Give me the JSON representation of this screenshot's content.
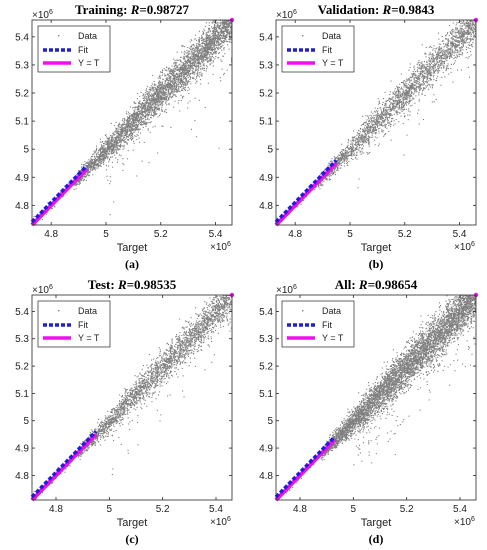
{
  "chart_data": [
    {
      "type": "scatter",
      "title_prefix": "Training: ",
      "title_r_label": "R",
      "title_value": "=0.98727",
      "caption": "(a)",
      "xlabel": "Target",
      "x_multiplier": "×10",
      "x_multiplier_exp": "6",
      "y_multiplier": "×10",
      "y_multiplier_exp": "6",
      "xlim": [
        4.73,
        5.46
      ],
      "ylim": [
        4.73,
        5.46
      ],
      "xticks": [
        "4.8",
        "5",
        "5.2",
        "5.4"
      ],
      "yticks": [
        "4.8",
        "4.9",
        "5",
        "5.1",
        "5.2",
        "5.3",
        "5.4"
      ],
      "legend": [
        "Data",
        "Fit",
        "Y = T"
      ],
      "legend_position": "top-left",
      "fit_range": [
        4.73,
        4.93
      ],
      "identity_range": [
        4.73,
        4.93
      ],
      "colors": {
        "data": "#7f7f7f",
        "fit": "#1f1fd6",
        "identity": "#ee11ee"
      }
    },
    {
      "type": "scatter",
      "title_prefix": "Validation: ",
      "title_r_label": "R",
      "title_value": "=0.9843",
      "caption": "(b)",
      "xlabel": "Target",
      "x_multiplier": "×10",
      "x_multiplier_exp": "6",
      "y_multiplier": "×10",
      "y_multiplier_exp": "6",
      "xlim": [
        4.73,
        5.46
      ],
      "ylim": [
        4.73,
        5.46
      ],
      "xticks": [
        "4.8",
        "5",
        "5.2",
        "5.4"
      ],
      "yticks": [
        "4.8",
        "4.9",
        "5",
        "5.1",
        "5.2",
        "5.3",
        "5.4"
      ],
      "legend": [
        "Data",
        "Fit",
        "Y = T"
      ],
      "legend_position": "top-left",
      "fit_range": [
        4.73,
        4.95
      ],
      "identity_range": [
        4.73,
        4.95
      ],
      "colors": {
        "data": "#7f7f7f",
        "fit": "#1f1fd6",
        "identity": "#ee11ee"
      }
    },
    {
      "type": "scatter",
      "title_prefix": "Test: ",
      "title_r_label": "R",
      "title_value": "=0.98535",
      "caption": "(c)",
      "xlabel": "Target",
      "x_multiplier": "×10",
      "x_multiplier_exp": "6",
      "y_multiplier": "×10",
      "y_multiplier_exp": "6",
      "xlim": [
        4.71,
        5.46
      ],
      "ylim": [
        4.71,
        5.46
      ],
      "xticks": [
        "4.8",
        "5",
        "5.2",
        "5.4"
      ],
      "yticks": [
        "4.8",
        "4.9",
        "5",
        "5.1",
        "5.2",
        "5.3",
        "5.4"
      ],
      "legend": [
        "Data",
        "Fit",
        "Y = T"
      ],
      "legend_position": "top-left",
      "fit_range": [
        4.71,
        4.95
      ],
      "identity_range": [
        4.71,
        4.95
      ],
      "colors": {
        "data": "#7f7f7f",
        "fit": "#1f1fd6",
        "identity": "#ee11ee"
      }
    },
    {
      "type": "scatter",
      "title_prefix": "All: ",
      "title_r_label": "R",
      "title_value": "=0.98654",
      "caption": "(d)",
      "xlabel": "Target",
      "x_multiplier": "×10",
      "x_multiplier_exp": "6",
      "y_multiplier": "×10",
      "y_multiplier_exp": "6",
      "xlim": [
        4.71,
        5.46
      ],
      "ylim": [
        4.71,
        5.46
      ],
      "xticks": [
        "4.8",
        "5",
        "5.2",
        "5.4"
      ],
      "yticks": [
        "4.8",
        "4.9",
        "5",
        "5.1",
        "5.2",
        "5.3",
        "5.4"
      ],
      "legend": [
        "Data",
        "Fit",
        "Y = T"
      ],
      "legend_position": "top-left",
      "fit_range": [
        4.71,
        4.93
      ],
      "identity_range": [
        4.71,
        4.93
      ],
      "colors": {
        "data": "#7f7f7f",
        "fit": "#1f1fd6",
        "identity": "#ee11ee"
      }
    }
  ]
}
